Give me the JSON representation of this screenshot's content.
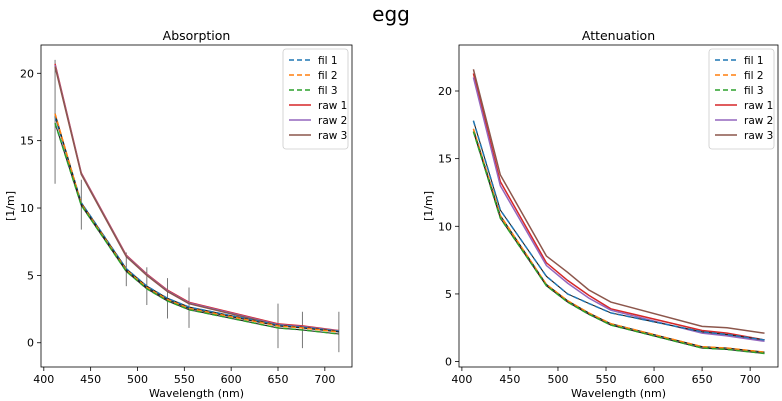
{
  "figure": {
    "suptitle": "egg"
  },
  "chart_data": [
    {
      "type": "line",
      "title": "Absorption",
      "xlabel": "Wavelength (nm)",
      "ylabel": "[1/m]",
      "xlim": [
        397,
        729
      ],
      "ylim": [
        -1.8,
        22.1
      ],
      "xticks": [
        400,
        450,
        500,
        550,
        600,
        650,
        700
      ],
      "yticks": [
        0,
        5,
        10,
        15,
        20
      ],
      "legend_position": "top-right",
      "x": [
        412,
        440,
        488,
        510,
        532,
        555,
        650,
        676,
        715
      ],
      "series": [
        {
          "name": "fil 1",
          "style": "dashed",
          "color": "#1f77b4",
          "values": [
            16.8,
            10.4,
            5.5,
            4.2,
            3.3,
            2.65,
            1.3,
            1.15,
            0.85
          ]
        },
        {
          "name": "fil 2",
          "style": "dashed",
          "color": "#ff7f0e",
          "values": [
            17.0,
            10.3,
            5.4,
            4.1,
            3.2,
            2.55,
            1.25,
            1.1,
            0.8
          ]
        },
        {
          "name": "fil 3",
          "style": "dashed",
          "color": "#2ca02c",
          "values": [
            16.3,
            10.2,
            5.3,
            4.0,
            3.1,
            2.45,
            1.1,
            0.95,
            0.65
          ]
        },
        {
          "name": "raw 1",
          "style": "solid",
          "color": "#d62728",
          "values": [
            20.7,
            12.6,
            6.5,
            5.1,
            3.9,
            3.0,
            1.4,
            1.25,
            0.9
          ]
        },
        {
          "name": "raw 2",
          "style": "solid",
          "color": "#9467bd",
          "values": [
            20.6,
            12.55,
            6.45,
            5.05,
            3.85,
            2.95,
            1.35,
            1.2,
            0.88
          ]
        },
        {
          "name": "raw 3",
          "style": "solid",
          "color": "#8c564b",
          "values": [
            20.5,
            12.5,
            6.4,
            5.0,
            3.8,
            2.9,
            1.3,
            1.15,
            0.85
          ]
        }
      ],
      "error_bars": {
        "x": [
          412,
          440,
          488,
          510,
          532,
          555,
          650,
          676,
          715
        ],
        "lower": [
          11.8,
          8.4,
          4.2,
          2.8,
          1.8,
          1.1,
          -0.4,
          -0.4,
          -0.7
        ],
        "upper": [
          21.0,
          12.1,
          6.7,
          5.6,
          4.8,
          4.1,
          2.9,
          2.3,
          2.3
        ]
      }
    },
    {
      "type": "line",
      "title": "Attenuation",
      "xlabel": "Wavelength (nm)",
      "ylabel": "[1/m]",
      "xlim": [
        397,
        729
      ],
      "ylim": [
        -0.4,
        23.4
      ],
      "xticks": [
        400,
        450,
        500,
        550,
        600,
        650,
        700
      ],
      "yticks": [
        0,
        5,
        10,
        15,
        20
      ],
      "legend_position": "top-right",
      "x": [
        412,
        440,
        488,
        510,
        532,
        555,
        650,
        676,
        715
      ],
      "series": [
        {
          "name": "fil 1",
          "style": "dashed",
          "color": "#1f77b4",
          "values": [
            17.8,
            11.2,
            6.3,
            5.0,
            4.3,
            3.6,
            2.2,
            2.0,
            1.6
          ]
        },
        {
          "name": "fil 2",
          "style": "dashed",
          "color": "#ff7f0e",
          "values": [
            17.2,
            10.8,
            5.7,
            4.5,
            3.6,
            2.8,
            1.1,
            1.0,
            0.7
          ]
        },
        {
          "name": "fil 3",
          "style": "dashed",
          "color": "#2ca02c",
          "values": [
            17.0,
            10.6,
            5.6,
            4.4,
            3.5,
            2.7,
            1.0,
            0.9,
            0.6
          ]
        },
        {
          "name": "raw 1",
          "style": "solid",
          "color": "#d62728",
          "values": [
            21.3,
            13.3,
            7.3,
            6.0,
            4.9,
            3.9,
            2.3,
            2.1,
            1.6
          ]
        },
        {
          "name": "raw 2",
          "style": "solid",
          "color": "#9467bd",
          "values": [
            21.0,
            13.0,
            7.1,
            5.8,
            4.7,
            3.8,
            2.1,
            1.9,
            1.5
          ]
        },
        {
          "name": "raw 3",
          "style": "solid",
          "color": "#8c564b",
          "values": [
            21.6,
            13.8,
            7.8,
            6.6,
            5.3,
            4.4,
            2.6,
            2.5,
            2.1
          ]
        }
      ]
    }
  ]
}
